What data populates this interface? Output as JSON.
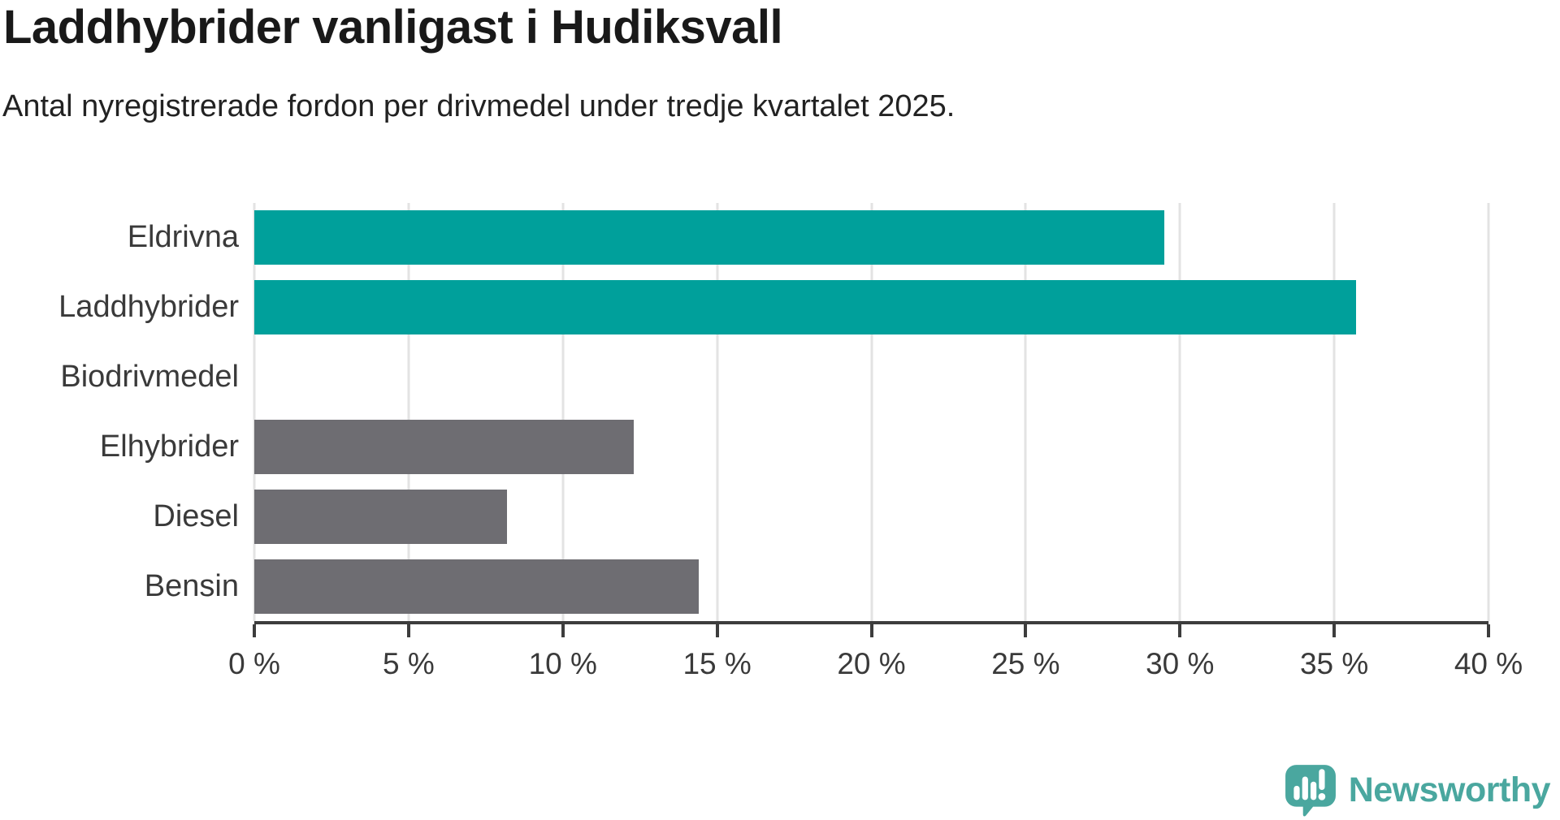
{
  "title": "Laddhybrider vanligast i Hudiksvall",
  "subtitle": "Antal nyregistrerade fordon per drivmedel under tredje kvartalet 2025.",
  "chart_data": {
    "type": "bar",
    "orientation": "horizontal",
    "title": "Laddhybrider vanligast i Hudiksvall",
    "subtitle": "Antal nyregistrerade fordon per drivmedel under tredje kvartalet 2025.",
    "categories": [
      "Eldrivna",
      "Laddhybrider",
      "Biodrivmedel",
      "Elhybrider",
      "Diesel",
      "Bensin"
    ],
    "values": [
      29.5,
      35.7,
      0,
      12.3,
      8.2,
      14.4
    ],
    "unit": "%",
    "xlabel": "",
    "ylabel": "",
    "xlim": [
      0,
      40
    ],
    "x_ticks": [
      0,
      5,
      10,
      15,
      20,
      25,
      30,
      35,
      40
    ],
    "x_tick_labels": [
      "0 %",
      "5 %",
      "10 %",
      "15 %",
      "20 %",
      "25 %",
      "30 %",
      "35 %",
      "40 %"
    ],
    "bar_colors": [
      "#00a09b",
      "#00a09b",
      "#6e6d72",
      "#6e6d72",
      "#6e6d72",
      "#6e6d72"
    ],
    "grid": true,
    "legend": false
  },
  "colors": {
    "teal": "#00a09b",
    "gray": "#6e6d72",
    "axis": "#3d3d3d",
    "gridline": "#e3e3e3",
    "label_text": "#3a3a3a",
    "title_text": "#191919",
    "brand": "#4aa79f"
  },
  "branding": {
    "logo_text": "Newsworthy",
    "logo_icon": "newsworthy-chart-bubble-icon"
  }
}
